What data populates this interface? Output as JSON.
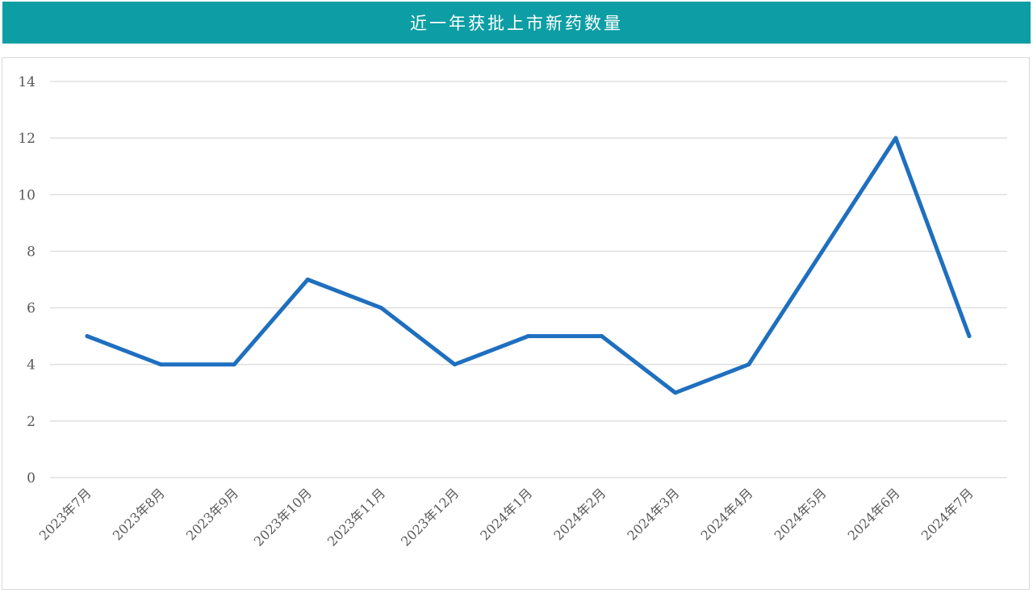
{
  "title": "近一年获批上市新药数量",
  "chart_data": {
    "type": "line",
    "title": "近一年获批上市新药数量",
    "categories": [
      "2023年7月",
      "2023年8月",
      "2023年9月",
      "2023年10月",
      "2023年11月",
      "2023年12月",
      "2024年1月",
      "2024年2月",
      "2024年3月",
      "2024年4月",
      "2024年5月",
      "2024年6月",
      "2024年7月"
    ],
    "values": [
      5,
      4,
      4,
      7,
      6,
      4,
      5,
      5,
      3,
      4,
      8,
      12,
      5
    ],
    "ylim": [
      0,
      14
    ],
    "yticks": [
      0,
      2,
      4,
      6,
      8,
      10,
      12,
      14
    ],
    "grid": true,
    "line_color": "#1f6fbf",
    "xlabel": "",
    "ylabel": ""
  },
  "colors": {
    "title_bar": "#0c9ea4",
    "grid": "#d9d9d9"
  }
}
